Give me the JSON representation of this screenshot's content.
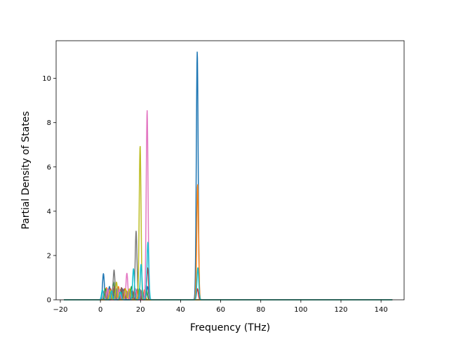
{
  "chart_data": {
    "type": "line",
    "title": "",
    "xlabel": "Frequency (THz)",
    "ylabel": "Partial Density of States",
    "xlim": [
      -22.1,
      151.5
    ],
    "ylim": [
      0,
      11.7
    ],
    "xticks": [
      -20,
      0,
      20,
      40,
      60,
      80,
      100,
      120,
      140
    ],
    "yticks": [
      0,
      2,
      4,
      6,
      8,
      10
    ],
    "grid": false,
    "legend": "none",
    "x_range": [
      -18.2,
      145.7
    ],
    "series": [
      {
        "color": "#1f77b4",
        "peaks": [
          [
            48.3,
            11.2
          ],
          [
            1.5,
            1.18
          ],
          [
            4.5,
            0.6
          ],
          [
            7.5,
            0.55
          ],
          [
            11.0,
            0.5
          ],
          [
            15.0,
            0.45
          ],
          [
            18.5,
            0.5
          ],
          [
            23.5,
            0.6
          ]
        ]
      },
      {
        "color": "#ff7f0e",
        "peaks": [
          [
            48.5,
            5.2
          ],
          [
            3.0,
            0.55
          ],
          [
            9.0,
            0.6
          ],
          [
            13.0,
            0.4
          ],
          [
            17.0,
            0.4
          ],
          [
            22.0,
            0.45
          ]
        ]
      },
      {
        "color": "#2ca02c",
        "peaks": [
          [
            2.5,
            0.5
          ],
          [
            6.5,
            0.8
          ],
          [
            10.0,
            0.45
          ],
          [
            15.5,
            0.6
          ],
          [
            19.5,
            0.5
          ],
          [
            23.0,
            0.4
          ]
        ]
      },
      {
        "color": "#d62728",
        "peaks": [
          [
            23.5,
            1.45
          ],
          [
            5.0,
            0.5
          ],
          [
            12.0,
            0.5
          ],
          [
            18.0,
            0.4
          ],
          [
            48.4,
            0.5
          ]
        ]
      },
      {
        "color": "#9467bd",
        "peaks": [
          [
            4.0,
            0.45
          ],
          [
            8.5,
            0.55
          ],
          [
            14.0,
            0.45
          ],
          [
            20.5,
            0.4
          ]
        ]
      },
      {
        "color": "#8c564b",
        "peaks": [
          [
            7.0,
            0.6
          ],
          [
            10.5,
            0.55
          ],
          [
            16.0,
            0.4
          ],
          [
            21.0,
            0.35
          ]
        ]
      },
      {
        "color": "#e377c2",
        "peaks": [
          [
            23.3,
            8.55
          ],
          [
            13.2,
            1.2
          ],
          [
            3.5,
            0.5
          ],
          [
            9.5,
            0.45
          ],
          [
            17.5,
            0.5
          ]
        ]
      },
      {
        "color": "#7f7f7f",
        "peaks": [
          [
            17.8,
            3.1
          ],
          [
            6.8,
            1.35
          ],
          [
            2.0,
            0.4
          ],
          [
            11.5,
            0.4
          ],
          [
            20.0,
            0.45
          ]
        ]
      },
      {
        "color": "#bcbd22",
        "peaks": [
          [
            19.8,
            6.95
          ],
          [
            8.0,
            0.8
          ],
          [
            14.5,
            0.5
          ],
          [
            4.8,
            0.45
          ],
          [
            12.5,
            0.5
          ]
        ]
      },
      {
        "color": "#17becf",
        "peaks": [
          [
            23.7,
            2.6
          ],
          [
            16.5,
            1.4
          ],
          [
            20.3,
            1.6
          ],
          [
            48.6,
            1.45
          ],
          [
            1.0,
            0.45
          ],
          [
            5.5,
            0.4
          ],
          [
            10.0,
            0.35
          ]
        ]
      }
    ]
  }
}
